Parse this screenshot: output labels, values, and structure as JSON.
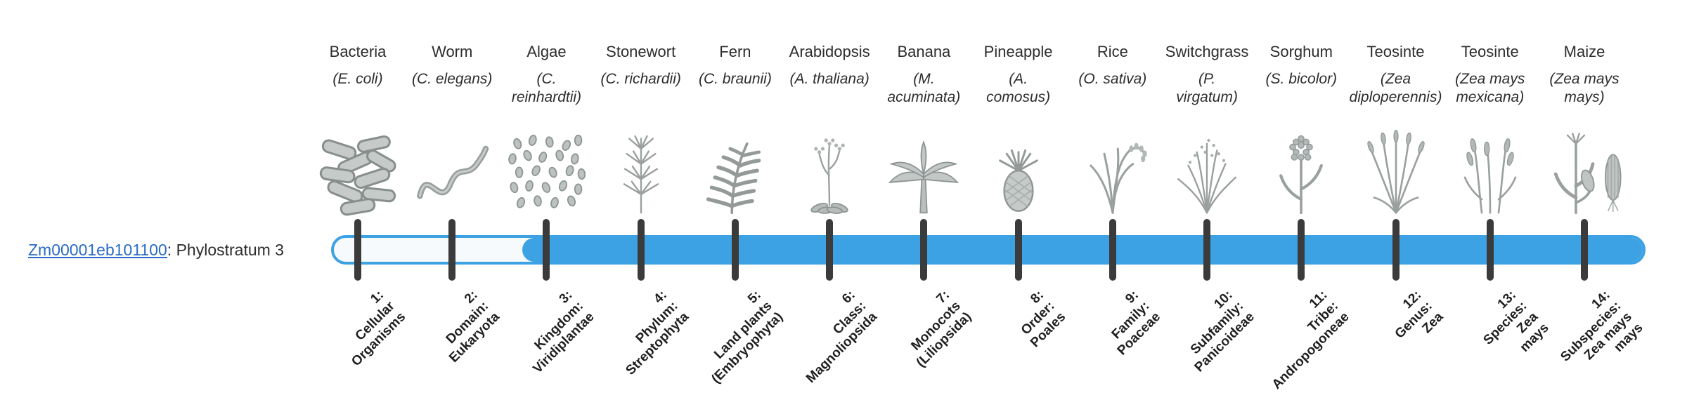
{
  "gene": {
    "link_text": "Zm00001eb101100",
    "suffix": ": Phylostratum 3"
  },
  "timeline": {
    "filled_from_phylostratum": 3,
    "bar_color": "#3DA2E3",
    "unfilled_color": "#F7FAFC",
    "tick_color": "#3B3B3B",
    "link_color": "#2A6BC4"
  },
  "organisms": [
    {
      "name": "Bacteria",
      "sci_lines": [
        "(E. coli)"
      ],
      "icon": "bacteria-icon",
      "stage_lines": [
        "1:",
        "Cellular",
        "Organisms"
      ]
    },
    {
      "name": "Worm",
      "sci_lines": [
        "(C. elegans)"
      ],
      "icon": "worm-icon",
      "stage_lines": [
        "2:",
        "Domain:",
        "Eukaryota"
      ]
    },
    {
      "name": "Algae",
      "sci_lines": [
        "(C.",
        "reinhardtii)"
      ],
      "icon": "algae-icon",
      "stage_lines": [
        "3:",
        "Kingdom:",
        "Viridiplantae"
      ]
    },
    {
      "name": "Stonewort",
      "sci_lines": [
        "(C. richardii)"
      ],
      "icon": "stonewort-icon",
      "stage_lines": [
        "4:",
        "Phylum:",
        "Streptophyta"
      ]
    },
    {
      "name": "Fern",
      "sci_lines": [
        "(C. braunii)"
      ],
      "icon": "fern-icon",
      "stage_lines": [
        "5:",
        "Land plants",
        "(Embryophyta)"
      ]
    },
    {
      "name": "Arabidopsis",
      "sci_lines": [
        "(A. thaliana)"
      ],
      "icon": "arabidopsis-icon",
      "stage_lines": [
        "6:",
        "Class:",
        "Magnoliopsida"
      ]
    },
    {
      "name": "Banana",
      "sci_lines": [
        "(M.",
        "acuminata)"
      ],
      "icon": "banana-icon",
      "stage_lines": [
        "7:",
        "Monocots",
        "(Liliopsida)"
      ]
    },
    {
      "name": "Pineapple",
      "sci_lines": [
        "(A.",
        "comosus)"
      ],
      "icon": "pineapple-icon",
      "stage_lines": [
        "8:",
        "Order:",
        "Poales"
      ]
    },
    {
      "name": "Rice",
      "sci_lines": [
        "(O. sativa)"
      ],
      "icon": "rice-icon",
      "stage_lines": [
        "9:",
        "Family:",
        "Poaceae"
      ]
    },
    {
      "name": "Switchgrass",
      "sci_lines": [
        "(P.",
        "virgatum)"
      ],
      "icon": "switchgrass-icon",
      "stage_lines": [
        "10:",
        "Subfamily:",
        "Panicoideae"
      ]
    },
    {
      "name": "Sorghum",
      "sci_lines": [
        "(S. bicolor)"
      ],
      "icon": "sorghum-icon",
      "stage_lines": [
        "11:",
        "Tribe:",
        "Andropogoneae"
      ]
    },
    {
      "name": "Teosinte",
      "sci_lines": [
        "(Zea",
        "diploperennis)"
      ],
      "icon": "teosinte-a-icon",
      "stage_lines": [
        "12:",
        "Genus:",
        "Zea"
      ]
    },
    {
      "name": "Teosinte",
      "sci_lines": [
        "(Zea mays",
        "mexicana)"
      ],
      "icon": "teosinte-b-icon",
      "stage_lines": [
        "13:",
        "Species:",
        "Zea",
        "mays"
      ]
    },
    {
      "name": "Maize",
      "sci_lines": [
        "(Zea mays",
        "mays)"
      ],
      "icon": "maize-icon",
      "stage_lines": [
        "14:",
        "Subspecies:",
        "Zea mays",
        "mays"
      ]
    }
  ]
}
